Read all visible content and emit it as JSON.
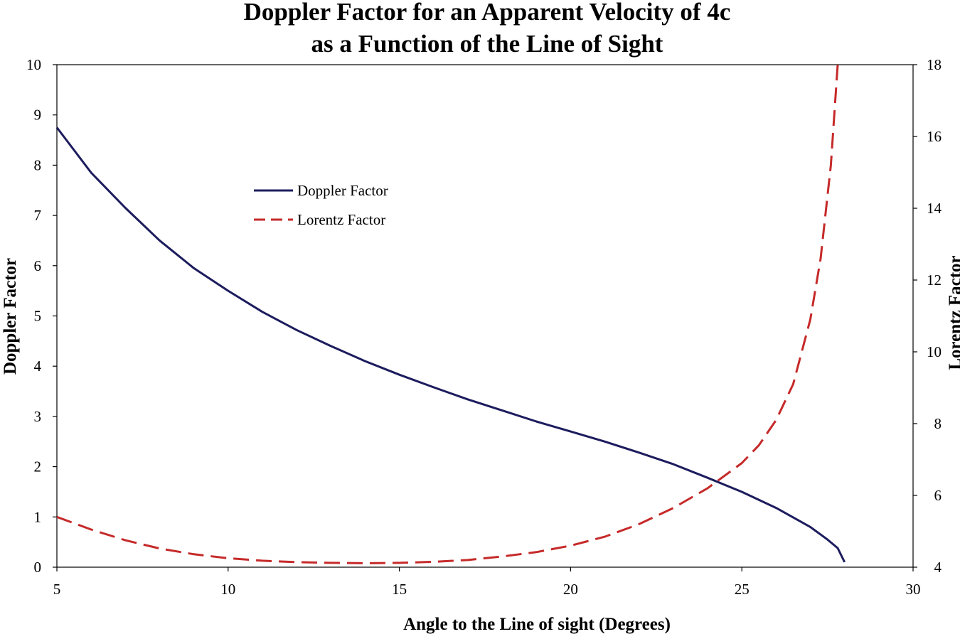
{
  "chart_data": {
    "type": "line",
    "title_line1": "Doppler Factor for an Apparent Velocity of 4c",
    "title_line2": "as a Function of the Line of Sight",
    "xlabel": "Angle to the Line of sight (Degrees)",
    "ylabel_left": "Doppler Factor",
    "ylabel_right": "Lorentz Factor",
    "xlim": [
      5,
      30
    ],
    "ylim_left": [
      0,
      10
    ],
    "ylim_right": [
      4,
      18
    ],
    "x_ticks": [
      "5",
      "10",
      "15",
      "20",
      "25",
      "30"
    ],
    "y_ticks_left": [
      "0",
      "1",
      "2",
      "3",
      "4",
      "5",
      "6",
      "7",
      "8",
      "9",
      "10"
    ],
    "y_ticks_right": [
      "4",
      "6",
      "8",
      "10",
      "12",
      "14",
      "16",
      "18"
    ],
    "grid": false,
    "legend_position": "upper-left",
    "series": [
      {
        "name": "Doppler Factor",
        "axis": "left",
        "color": "#1c1c5e",
        "dash": "solid",
        "x": [
          5,
          6,
          7,
          8,
          9,
          10,
          11,
          12,
          13,
          14,
          15,
          16,
          17,
          18,
          19,
          20,
          21,
          22,
          23,
          24,
          25,
          26,
          27,
          27.5,
          27.8,
          28
        ],
        "y": [
          8.75,
          7.85,
          7.15,
          6.5,
          5.95,
          5.5,
          5.08,
          4.72,
          4.4,
          4.1,
          3.83,
          3.58,
          3.34,
          3.12,
          2.9,
          2.7,
          2.5,
          2.28,
          2.05,
          1.78,
          1.5,
          1.18,
          0.8,
          0.55,
          0.38,
          0.1
        ]
      },
      {
        "name": "Lorentz Factor",
        "axis": "right",
        "color": "#c62a2a",
        "dash": "dashed",
        "x": [
          5,
          6,
          7,
          8,
          9,
          10,
          11,
          12,
          13,
          14,
          15,
          16,
          17,
          18,
          19,
          20,
          21,
          22,
          23,
          24,
          25,
          25.5,
          26,
          26.5,
          27,
          27.3,
          27.6,
          27.8
        ],
        "y": [
          5.4,
          5.05,
          4.75,
          4.52,
          4.36,
          4.25,
          4.18,
          4.14,
          4.12,
          4.11,
          4.12,
          4.15,
          4.2,
          4.3,
          4.42,
          4.6,
          4.85,
          5.2,
          5.65,
          6.2,
          6.9,
          7.4,
          8.1,
          9.1,
          10.9,
          12.6,
          15.2,
          18
        ]
      }
    ]
  }
}
